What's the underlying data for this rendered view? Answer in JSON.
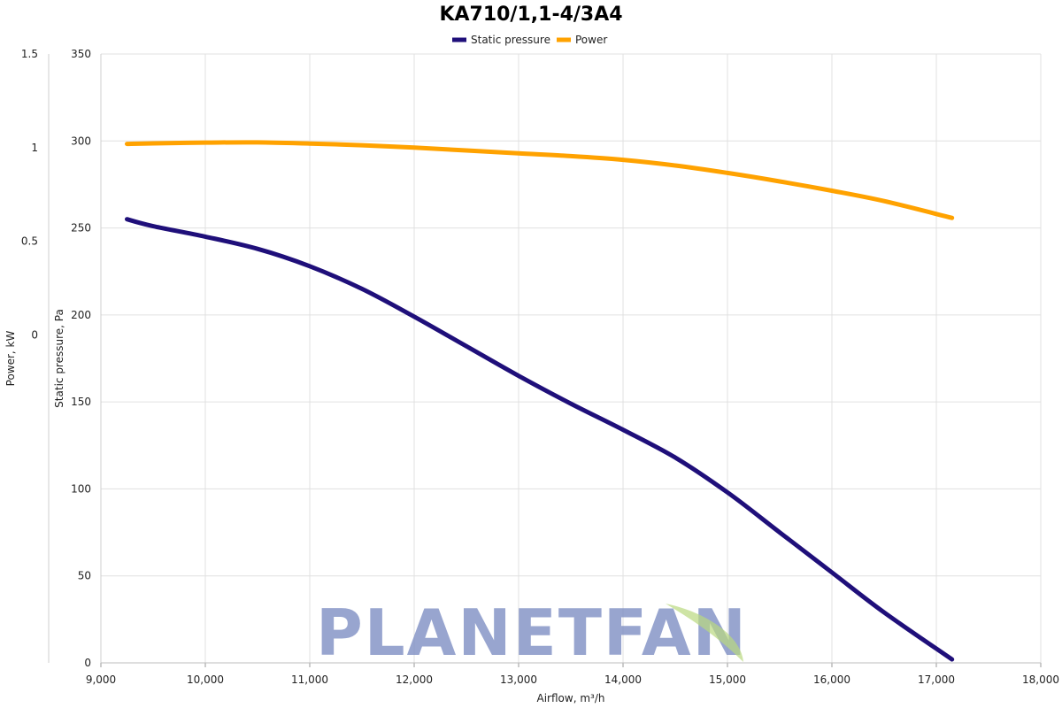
{
  "chart_data": {
    "type": "line",
    "title": "KA710/1,1-4/3A4",
    "xlabel": "Airflow, m³/h",
    "ylabel_left_outer": "Power, kW",
    "ylabel_left_inner": "Static pressure, Pa",
    "xlim": [
      9000,
      18000
    ],
    "xticks": [
      "9,000",
      "10,000",
      "11,000",
      "12,000",
      "13,000",
      "14,000",
      "15,000",
      "16,000",
      "17,000",
      "18,000"
    ],
    "y_pressure_lim": [
      0,
      350
    ],
    "y_pressure_ticks": [
      "0",
      "50",
      "100",
      "150",
      "200",
      "250",
      "300",
      "350"
    ],
    "y_power_lim": [
      -1.75,
      1.5
    ],
    "y_power_ticks": [
      "0.5",
      "1",
      "1.5",
      "0"
    ],
    "grid": true,
    "legend_position": "top-center",
    "series": [
      {
        "name": "Static pressure",
        "color": "#1f0f7a",
        "axis": "pressure",
        "x": [
          9250,
          9500,
          10000,
          10500,
          11000,
          11500,
          12000,
          12500,
          13000,
          13500,
          14000,
          14500,
          15000,
          15500,
          16000,
          16500,
          17150
        ],
        "y": [
          255,
          251,
          245,
          238,
          228,
          215,
          199,
          182,
          165,
          149,
          134,
          118,
          98,
          75,
          52,
          29,
          2
        ]
      },
      {
        "name": "Power",
        "color": "#ffa200",
        "axis": "power",
        "x": [
          9250,
          9500,
          10000,
          10500,
          11000,
          11500,
          12000,
          12500,
          13000,
          13500,
          14000,
          14500,
          15000,
          15500,
          16000,
          16500,
          17150
        ],
        "y": [
          1.02,
          1.023,
          1.027,
          1.028,
          1.022,
          1.013,
          1.0,
          0.985,
          0.97,
          0.955,
          0.935,
          0.905,
          0.865,
          0.82,
          0.77,
          0.715,
          0.625
        ]
      }
    ]
  },
  "watermark": {
    "text": "PLANETFAN",
    "color": "#7f8fc4",
    "leaf_color": "#b9d97f"
  }
}
